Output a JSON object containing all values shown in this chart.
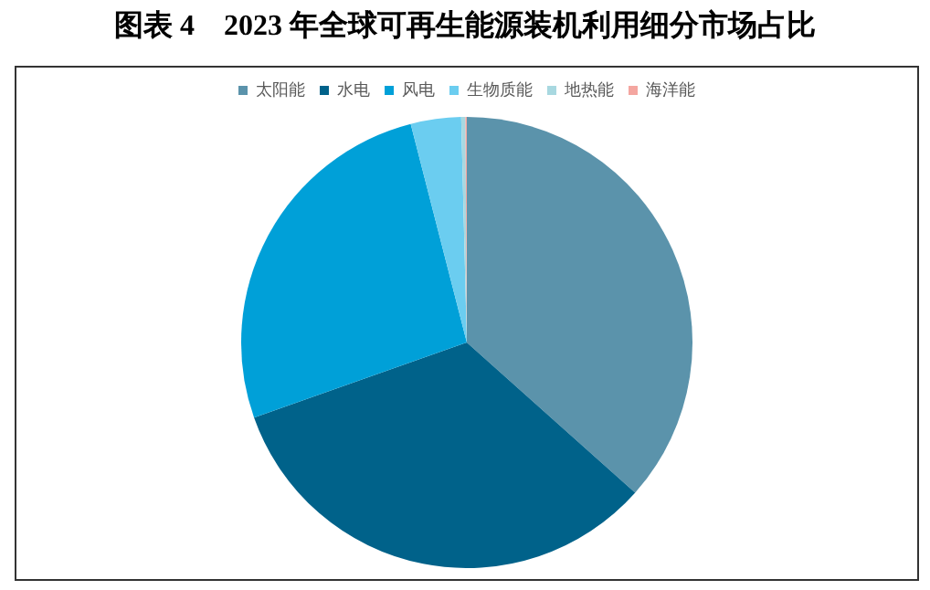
{
  "chart_data": {
    "type": "pie",
    "title": "图表 4　2023 年全球可再生能源装机利用细分市场占比",
    "categories": [
      "太阳能",
      "水电",
      "风电",
      "生物质能",
      "地热能",
      "海洋能"
    ],
    "values": [
      36.6,
      33.0,
      26.4,
      3.6,
      0.3,
      0.1
    ],
    "colors": [
      "#5b93ab",
      "#00628a",
      "#00a0d8",
      "#6bcdf0",
      "#a8d8e0",
      "#f4a6a0"
    ],
    "legend": "top"
  }
}
